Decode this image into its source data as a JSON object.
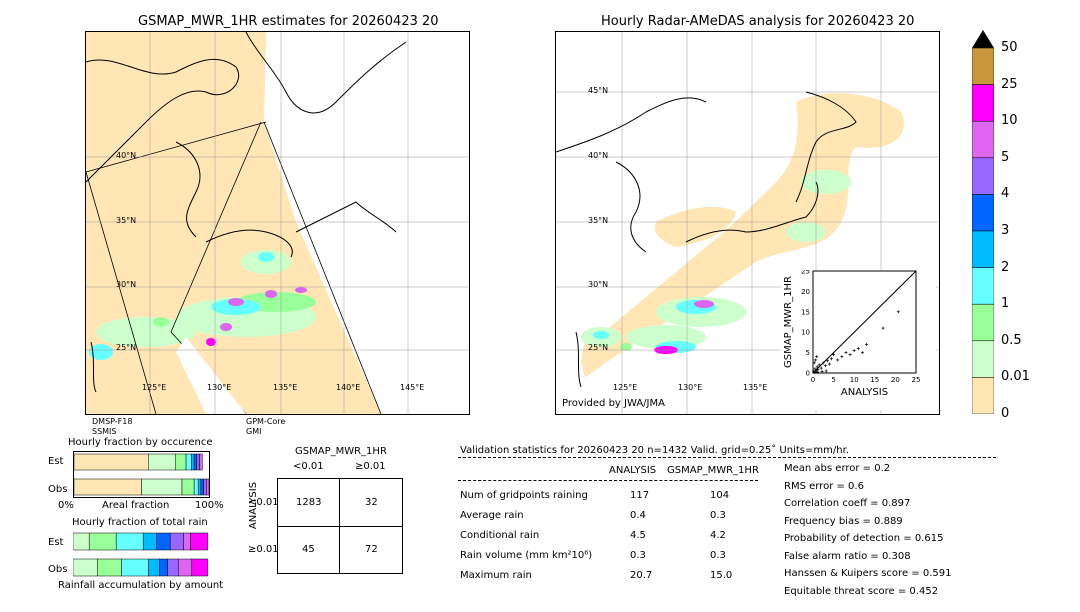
{
  "left_map": {
    "title": "GSMAP_MWR_1HR estimates for 20260423 20",
    "lat_labels": [
      "40°N",
      "35°N",
      "30°N",
      "25°N"
    ],
    "lon_labels": [
      "125°E",
      "130°E",
      "135°E",
      "140°E",
      "145°E"
    ],
    "sensor1_line1": "DMSP-F18",
    "sensor1_line2": "SSMIS",
    "sensor2_line1": "GPM-Core",
    "sensor2_line2": "GMI"
  },
  "right_map": {
    "title": "Hourly Radar-AMeDAS analysis for 20260423 20",
    "lat_labels": [
      "45°N",
      "40°N",
      "35°N",
      "30°N",
      "25°N"
    ],
    "lon_labels": [
      "125°E",
      "130°E",
      "135°E"
    ],
    "provider": "Provided by JWA/JMA"
  },
  "colorbar": {
    "labels": [
      "50",
      "25",
      "10",
      "5",
      "4",
      "3",
      "2",
      "1",
      "0.5",
      "0.01",
      "0"
    ],
    "colors": [
      "#c8963c",
      "#ff00ff",
      "#dd66ee",
      "#9966ff",
      "#0066ff",
      "#00bbff",
      "#66ffff",
      "#99ff99",
      "#ccffcc",
      "#ffe6b4"
    ]
  },
  "scatter": {
    "ylabel": "GSMAP_MWR_1HR",
    "xlabel": "ANALYSIS",
    "ticks": [
      "0",
      "5",
      "10",
      "15",
      "20",
      "25"
    ]
  },
  "chart_data": {
    "type": "scatter",
    "title": "",
    "xlabel": "ANALYSIS",
    "ylabel": "GSMAP_MWR_1HR",
    "xlim": [
      0,
      25
    ],
    "ylim": [
      0,
      25
    ],
    "points": [
      [
        0.2,
        0.3
      ],
      [
        0.4,
        0.2
      ],
      [
        0.5,
        1.0
      ],
      [
        0.8,
        0.5
      ],
      [
        1.0,
        1.5
      ],
      [
        1.2,
        0.8
      ],
      [
        1.5,
        2.0
      ],
      [
        2.0,
        1.2
      ],
      [
        2.5,
        2.5
      ],
      [
        3.0,
        1.8
      ],
      [
        3.5,
        3.0
      ],
      [
        4.0,
        2.2
      ],
      [
        4.5,
        3.5
      ],
      [
        5.0,
        4.5
      ],
      [
        6.0,
        3.2
      ],
      [
        7.0,
        4.0
      ],
      [
        8.0,
        5.0
      ],
      [
        9.0,
        4.5
      ],
      [
        10.0,
        5.5
      ],
      [
        11.0,
        6.0
      ],
      [
        12.0,
        5.0
      ],
      [
        13.0,
        7.0
      ],
      [
        17.0,
        11.0
      ],
      [
        20.7,
        15.0
      ],
      [
        0.3,
        2.5
      ],
      [
        0.6,
        3.2
      ],
      [
        1.1,
        0.2
      ],
      [
        2.2,
        0.4
      ],
      [
        3.2,
        0.5
      ],
      [
        0.9,
        4.0
      ]
    ]
  },
  "fraction_occurrence": {
    "title": "Hourly fraction by occurence",
    "row_est": "Est",
    "row_obs": "Obs",
    "axis_left": "0%",
    "axis_mid": "Areal fraction",
    "axis_right": "100%",
    "est": [
      0.55,
      0.2,
      0.08,
      0.04,
      0.02,
      0.02,
      0.02,
      0.02
    ],
    "obs": [
      0.5,
      0.3,
      0.09,
      0.03,
      0.02,
      0.02,
      0.02,
      0.02
    ]
  },
  "fraction_total": {
    "title": "Hourly fraction of total rain",
    "row_est": "Est",
    "row_obs": "Obs",
    "footer": "Rainfall accumulation by amount",
    "est": [
      0.12,
      0.2,
      0.2,
      0.1,
      0.1,
      0.1,
      0.05,
      0.13
    ],
    "obs": [
      0.18,
      0.18,
      0.2,
      0.08,
      0.06,
      0.08,
      0.1,
      0.12
    ]
  },
  "contingency": {
    "title": "GSMAP_MWR_1HR",
    "col1": "<0.01",
    "col2": "≥0.01",
    "side_label": "ANALYSIS",
    "row1": "<0.01",
    "row2": "≥0.01",
    "a": "1283",
    "b": "32",
    "c": "45",
    "d": "72"
  },
  "validation": {
    "header": "Validation statistics for 20260423 20  n=1432 Valid. grid=0.25˚ Units=mm/hr.",
    "col_analysis": "ANALYSIS",
    "col_gsmap": "GSMAP_MWR_1HR",
    "rows": [
      {
        "label": "Num of gridpoints raining",
        "a": "117",
        "g": "104"
      },
      {
        "label": "Average rain",
        "a": "0.4",
        "g": "0.3"
      },
      {
        "label": "Conditional rain",
        "a": "4.5",
        "g": "4.2"
      },
      {
        "label": "Rain volume (mm km²10⁶)",
        "a": "0.3",
        "g": "0.3"
      },
      {
        "label": "Maximum rain",
        "a": "20.7",
        "g": "15.0"
      }
    ],
    "scores": [
      "Mean abs error =    0.2",
      "RMS error =    0.6",
      "Correlation coeff =  0.897",
      "Frequency bias =  0.889",
      "Probability of detection =  0.615",
      "False alarm ratio =  0.308",
      "Hanssen & Kuipers score =  0.591",
      "Equitable threat score =  0.452"
    ]
  }
}
